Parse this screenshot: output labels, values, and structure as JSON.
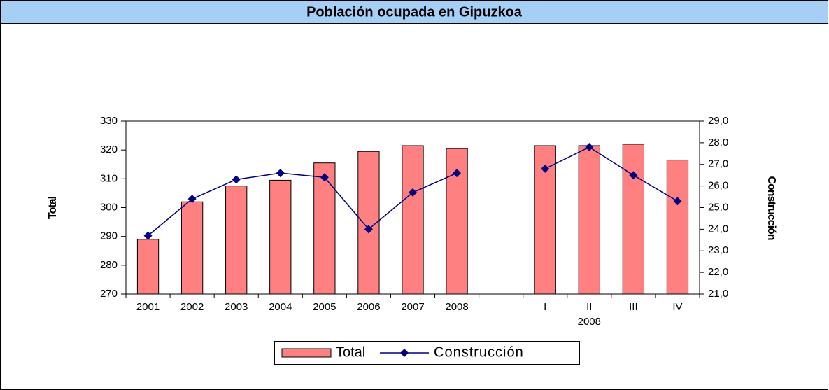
{
  "chart_data": {
    "type": "bar-line",
    "title": "Población ocupada en Gipuzkoa",
    "ylabel": "Total",
    "y2label": "Construcción",
    "annotation": "2008",
    "categories": [
      "2001",
      "2002",
      "2003",
      "2004",
      "2005",
      "2006",
      "2007",
      "2008",
      null,
      "I",
      "II",
      "III",
      "IV"
    ],
    "series": [
      {
        "name": "Total",
        "type": "bar",
        "color": "#ff8080",
        "values": [
          289,
          302,
          307.5,
          309.5,
          315.5,
          319.5,
          321.5,
          320.5,
          null,
          321.5,
          321.5,
          322,
          316.5
        ]
      },
      {
        "name": "Construcción",
        "type": "line",
        "axis": "y2",
        "color": "#000080",
        "values": [
          23.7,
          25.4,
          26.3,
          26.6,
          26.4,
          24.0,
          25.7,
          26.6,
          null,
          26.8,
          27.8,
          26.5,
          25.3
        ]
      }
    ],
    "ylim": [
      270,
      330
    ],
    "yticks": [
      270,
      280,
      290,
      300,
      310,
      320,
      330
    ],
    "y2lim": [
      21,
      29
    ],
    "y2ticks": [
      {
        "value": 21,
        "label": "21,0"
      },
      {
        "value": 22,
        "label": "22,0"
      },
      {
        "value": 23,
        "label": "23,0"
      },
      {
        "value": 24,
        "label": "24,0"
      },
      {
        "value": 25,
        "label": "25,0"
      },
      {
        "value": 26,
        "label": "26,0"
      },
      {
        "value": 27,
        "label": "27,0"
      },
      {
        "value": 28,
        "label": "28,0"
      },
      {
        "value": 29,
        "label": "29,0"
      }
    ],
    "legend": "bottom"
  }
}
